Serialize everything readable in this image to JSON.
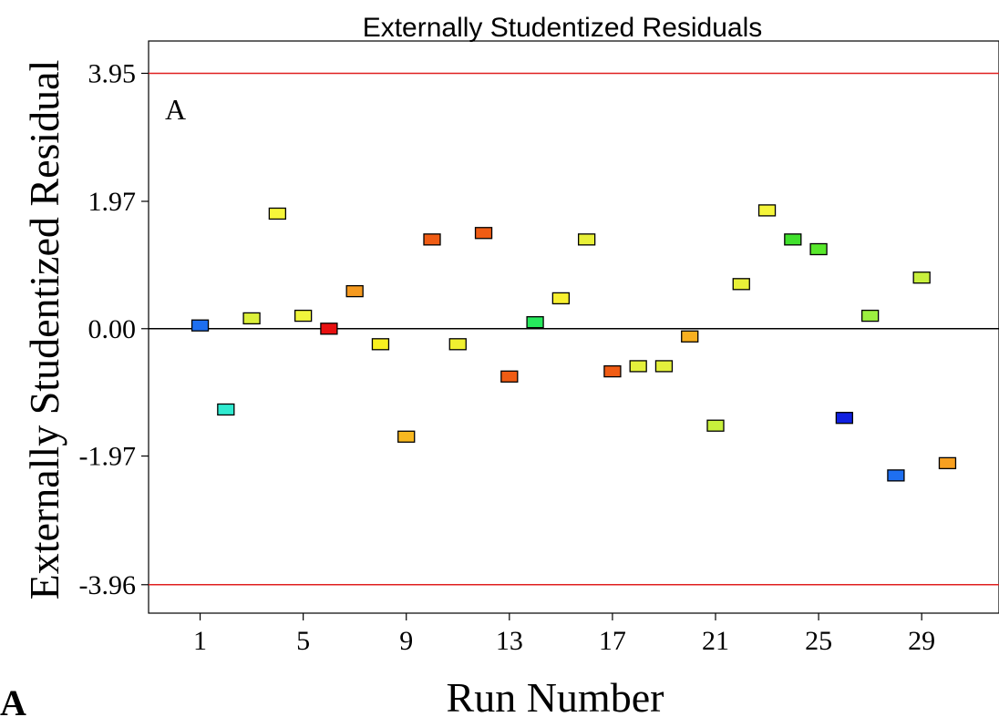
{
  "chart_data": {
    "type": "scatter",
    "title": "Externally Studentized Residuals",
    "xlabel": "Run Number",
    "ylabel": "Externally Studentized Residual",
    "panel_label": "A",
    "figure_label": "A",
    "xlim": [
      -1,
      32
    ],
    "ylim": [
      -4.4,
      4.45
    ],
    "x_ticks": [
      1,
      5,
      9,
      13,
      17,
      21,
      25,
      29
    ],
    "y_ticks": [
      {
        "value": 3.95,
        "label": "3.95"
      },
      {
        "value": 1.97,
        "label": "1.97"
      },
      {
        "value": 0.0,
        "label": "0.00"
      },
      {
        "value": -1.97,
        "label": "-1.97"
      },
      {
        "value": -3.96,
        "label": "-3.96"
      }
    ],
    "limit_lines": [
      3.95,
      -3.96
    ],
    "zero_line": 0.0,
    "colors": {
      "limit_line": "#e02020",
      "zero_line": "#000000",
      "marker_border": "#000000"
    },
    "points": [
      {
        "x": 1,
        "y": 0.05,
        "color": "#1e6ff0"
      },
      {
        "x": 2,
        "y": -1.25,
        "color": "#30ead0"
      },
      {
        "x": 3,
        "y": 0.16,
        "color": "#dcf03a"
      },
      {
        "x": 4,
        "y": 1.78,
        "color": "#f5f53a"
      },
      {
        "x": 5,
        "y": 0.2,
        "color": "#f0f53c"
      },
      {
        "x": 6,
        "y": 0.0,
        "color": "#e81010"
      },
      {
        "x": 7,
        "y": 0.58,
        "color": "#f59a20"
      },
      {
        "x": 8,
        "y": -0.24,
        "color": "#f8f020"
      },
      {
        "x": 9,
        "y": -1.67,
        "color": "#f8b820"
      },
      {
        "x": 10,
        "y": 1.38,
        "color": "#f05c14"
      },
      {
        "x": 11,
        "y": -0.24,
        "color": "#f0f030"
      },
      {
        "x": 12,
        "y": 1.48,
        "color": "#f05c14"
      },
      {
        "x": 13,
        "y": -0.74,
        "color": "#f05c14"
      },
      {
        "x": 14,
        "y": 0.1,
        "color": "#26e85c"
      },
      {
        "x": 15,
        "y": 0.47,
        "color": "#f8f030"
      },
      {
        "x": 16,
        "y": 1.38,
        "color": "#e8f038"
      },
      {
        "x": 17,
        "y": -0.66,
        "color": "#f05c14"
      },
      {
        "x": 18,
        "y": -0.58,
        "color": "#e4f03c"
      },
      {
        "x": 19,
        "y": -0.58,
        "color": "#e4f03c"
      },
      {
        "x": 20,
        "y": -0.12,
        "color": "#f8b020"
      },
      {
        "x": 21,
        "y": -1.5,
        "color": "#c8f03c"
      },
      {
        "x": 22,
        "y": 0.69,
        "color": "#e8f038"
      },
      {
        "x": 23,
        "y": 1.83,
        "color": "#f5f53a"
      },
      {
        "x": 24,
        "y": 1.38,
        "color": "#40e02c"
      },
      {
        "x": 25,
        "y": 1.23,
        "color": "#58e82c"
      },
      {
        "x": 26,
        "y": -1.38,
        "color": "#1020e0"
      },
      {
        "x": 27,
        "y": 0.2,
        "color": "#9cf040"
      },
      {
        "x": 28,
        "y": -2.27,
        "color": "#1e6ff0"
      },
      {
        "x": 29,
        "y": 0.79,
        "color": "#c8f03c"
      },
      {
        "x": 30,
        "y": -2.08,
        "color": "#f8a020"
      }
    ]
  }
}
